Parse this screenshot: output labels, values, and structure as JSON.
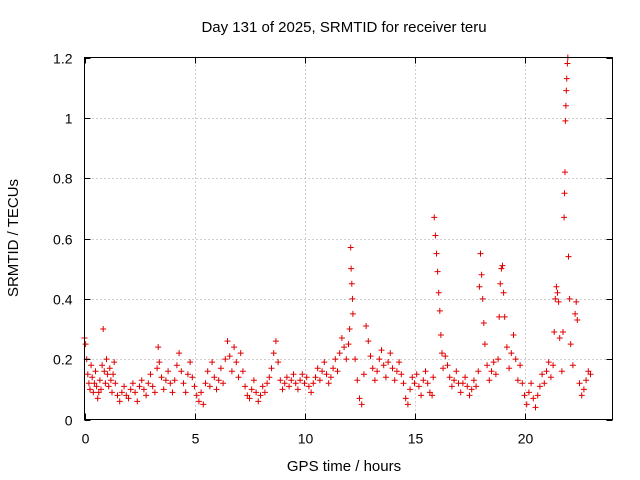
{
  "chart_data": {
    "type": "scatter",
    "title": "Day 131 of 2025, SRMTID for receiver teru",
    "xlabel": "GPS time / hours",
    "ylabel": "SRMTID / TECUs",
    "xlim": [
      0,
      24
    ],
    "ylim": [
      0,
      1.2
    ],
    "xticks": [
      0,
      5,
      10,
      15,
      20
    ],
    "xtick_labels": [
      "0",
      "5",
      "10",
      "15",
      "20"
    ],
    "yticks": [
      0,
      0.2,
      0.4,
      0.6,
      0.8,
      1.0,
      1.2
    ],
    "ytick_labels": [
      "0",
      "0.2",
      "0.4",
      "0.6",
      "0.8",
      "1",
      "1.2"
    ],
    "grid": true,
    "marker": "+",
    "color": "#e00000",
    "series": [
      {
        "name": "SRMTID",
        "points": [
          [
            0.0,
            0.27
          ],
          [
            0.05,
            0.25
          ],
          [
            0.1,
            0.2
          ],
          [
            0.15,
            0.15
          ],
          [
            0.2,
            0.12
          ],
          [
            0.25,
            0.1
          ],
          [
            0.3,
            0.18
          ],
          [
            0.35,
            0.14
          ],
          [
            0.4,
            0.09
          ],
          [
            0.45,
            0.12
          ],
          [
            0.5,
            0.16
          ],
          [
            0.55,
            0.11
          ],
          [
            0.6,
            0.07
          ],
          [
            0.65,
            0.09
          ],
          [
            0.7,
            0.13
          ],
          [
            0.75,
            0.1
          ],
          [
            0.8,
            0.18
          ],
          [
            0.85,
            0.3
          ],
          [
            0.9,
            0.16
          ],
          [
            0.95,
            0.12
          ],
          [
            1.0,
            0.2
          ],
          [
            1.05,
            0.15
          ],
          [
            1.1,
            0.11
          ],
          [
            1.15,
            0.17
          ],
          [
            1.2,
            0.13
          ],
          [
            1.25,
            0.09
          ],
          [
            1.3,
            0.15
          ],
          [
            1.35,
            0.19
          ],
          [
            1.4,
            0.12
          ],
          [
            1.5,
            0.08
          ],
          [
            1.6,
            0.06
          ],
          [
            1.7,
            0.09
          ],
          [
            1.8,
            0.11
          ],
          [
            1.9,
            0.08
          ],
          [
            2.0,
            0.07
          ],
          [
            2.1,
            0.1
          ],
          [
            2.2,
            0.12
          ],
          [
            2.3,
            0.09
          ],
          [
            2.4,
            0.06
          ],
          [
            2.5,
            0.11
          ],
          [
            2.6,
            0.13
          ],
          [
            2.7,
            0.1
          ],
          [
            2.8,
            0.08
          ],
          [
            2.9,
            0.12
          ],
          [
            3.0,
            0.15
          ],
          [
            3.1,
            0.11
          ],
          [
            3.2,
            0.09
          ],
          [
            3.3,
            0.17
          ],
          [
            3.35,
            0.24
          ],
          [
            3.4,
            0.19
          ],
          [
            3.5,
            0.14
          ],
          [
            3.6,
            0.1
          ],
          [
            3.7,
            0.13
          ],
          [
            3.8,
            0.16
          ],
          [
            3.9,
            0.12
          ],
          [
            4.0,
            0.09
          ],
          [
            4.1,
            0.13
          ],
          [
            4.2,
            0.18
          ],
          [
            4.3,
            0.22
          ],
          [
            4.4,
            0.16
          ],
          [
            4.5,
            0.12
          ],
          [
            4.6,
            0.09
          ],
          [
            4.7,
            0.15
          ],
          [
            4.8,
            0.19
          ],
          [
            4.9,
            0.14
          ],
          [
            5.0,
            0.11
          ],
          [
            5.1,
            0.08
          ],
          [
            5.2,
            0.06
          ],
          [
            5.3,
            0.09
          ],
          [
            5.4,
            0.05
          ],
          [
            5.5,
            0.12
          ],
          [
            5.6,
            0.16
          ],
          [
            5.7,
            0.11
          ],
          [
            5.8,
            0.19
          ],
          [
            5.9,
            0.14
          ],
          [
            6.0,
            0.1
          ],
          [
            6.1,
            0.13
          ],
          [
            6.2,
            0.17
          ],
          [
            6.3,
            0.12
          ],
          [
            6.4,
            0.2
          ],
          [
            6.5,
            0.26
          ],
          [
            6.6,
            0.21
          ],
          [
            6.7,
            0.16
          ],
          [
            6.8,
            0.24
          ],
          [
            6.9,
            0.19
          ],
          [
            7.0,
            0.14
          ],
          [
            7.1,
            0.22
          ],
          [
            7.2,
            0.16
          ],
          [
            7.3,
            0.11
          ],
          [
            7.4,
            0.08
          ],
          [
            7.5,
            0.07
          ],
          [
            7.6,
            0.1
          ],
          [
            7.7,
            0.13
          ],
          [
            7.8,
            0.09
          ],
          [
            7.9,
            0.06
          ],
          [
            8.0,
            0.08
          ],
          [
            8.1,
            0.11
          ],
          [
            8.2,
            0.09
          ],
          [
            8.3,
            0.12
          ],
          [
            8.4,
            0.14
          ],
          [
            8.5,
            0.17
          ],
          [
            8.6,
            0.22
          ],
          [
            8.7,
            0.26
          ],
          [
            8.8,
            0.19
          ],
          [
            8.9,
            0.13
          ],
          [
            9.0,
            0.1
          ],
          [
            9.1,
            0.12
          ],
          [
            9.2,
            0.14
          ],
          [
            9.3,
            0.11
          ],
          [
            9.4,
            0.13
          ],
          [
            9.5,
            0.15
          ],
          [
            9.6,
            0.12
          ],
          [
            9.7,
            0.1
          ],
          [
            9.8,
            0.13
          ],
          [
            9.9,
            0.15
          ],
          [
            10.0,
            0.12
          ],
          [
            10.1,
            0.14
          ],
          [
            10.2,
            0.11
          ],
          [
            10.3,
            0.09
          ],
          [
            10.4,
            0.12
          ],
          [
            10.5,
            0.14
          ],
          [
            10.6,
            0.17
          ],
          [
            10.7,
            0.13
          ],
          [
            10.8,
            0.16
          ],
          [
            10.9,
            0.19
          ],
          [
            11.0,
            0.15
          ],
          [
            11.1,
            0.12
          ],
          [
            11.2,
            0.14
          ],
          [
            11.3,
            0.17
          ],
          [
            11.4,
            0.2
          ],
          [
            11.5,
            0.16
          ],
          [
            11.6,
            0.22
          ],
          [
            11.7,
            0.27
          ],
          [
            11.8,
            0.24
          ],
          [
            11.9,
            0.2
          ],
          [
            12.0,
            0.25
          ],
          [
            12.05,
            0.3
          ],
          [
            12.1,
            0.57
          ],
          [
            12.12,
            0.5
          ],
          [
            12.15,
            0.45
          ],
          [
            12.18,
            0.4
          ],
          [
            12.2,
            0.35
          ],
          [
            12.3,
            0.2
          ],
          [
            12.4,
            0.13
          ],
          [
            12.5,
            0.07
          ],
          [
            12.6,
            0.05
          ],
          [
            12.7,
            0.15
          ],
          [
            12.8,
            0.31
          ],
          [
            12.9,
            0.26
          ],
          [
            13.0,
            0.21
          ],
          [
            13.1,
            0.17
          ],
          [
            13.2,
            0.13
          ],
          [
            13.3,
            0.16
          ],
          [
            13.4,
            0.2
          ],
          [
            13.5,
            0.23
          ],
          [
            13.6,
            0.18
          ],
          [
            13.7,
            0.14
          ],
          [
            13.8,
            0.19
          ],
          [
            13.9,
            0.22
          ],
          [
            14.0,
            0.17
          ],
          [
            14.1,
            0.13
          ],
          [
            14.2,
            0.16
          ],
          [
            14.3,
            0.19
          ],
          [
            14.4,
            0.15
          ],
          [
            14.5,
            0.12
          ],
          [
            14.6,
            0.07
          ],
          [
            14.7,
            0.05
          ],
          [
            14.8,
            0.1
          ],
          [
            14.9,
            0.14
          ],
          [
            15.0,
            0.12
          ],
          [
            15.1,
            0.15
          ],
          [
            15.2,
            0.11
          ],
          [
            15.3,
            0.08
          ],
          [
            15.4,
            0.13
          ],
          [
            15.5,
            0.16
          ],
          [
            15.6,
            0.12
          ],
          [
            15.7,
            0.09
          ],
          [
            15.8,
            0.08
          ],
          [
            15.85,
            0.14
          ],
          [
            15.9,
            0.67
          ],
          [
            15.95,
            0.61
          ],
          [
            16.0,
            0.55
          ],
          [
            16.05,
            0.49
          ],
          [
            16.1,
            0.42
          ],
          [
            16.15,
            0.36
          ],
          [
            16.2,
            0.28
          ],
          [
            16.25,
            0.22
          ],
          [
            16.3,
            0.17
          ],
          [
            16.4,
            0.21
          ],
          [
            16.5,
            0.18
          ],
          [
            16.6,
            0.14
          ],
          [
            16.7,
            0.11
          ],
          [
            16.8,
            0.13
          ],
          [
            16.9,
            0.16
          ],
          [
            17.0,
            0.12
          ],
          [
            17.1,
            0.09
          ],
          [
            17.2,
            0.12
          ],
          [
            17.3,
            0.14
          ],
          [
            17.4,
            0.11
          ],
          [
            17.5,
            0.08
          ],
          [
            17.6,
            0.1
          ],
          [
            17.7,
            0.13
          ],
          [
            17.8,
            0.11
          ],
          [
            17.9,
            0.16
          ],
          [
            17.95,
            0.44
          ],
          [
            18.0,
            0.55
          ],
          [
            18.05,
            0.48
          ],
          [
            18.1,
            0.4
          ],
          [
            18.15,
            0.32
          ],
          [
            18.2,
            0.25
          ],
          [
            18.3,
            0.18
          ],
          [
            18.4,
            0.13
          ],
          [
            18.5,
            0.16
          ],
          [
            18.6,
            0.19
          ],
          [
            18.7,
            0.15
          ],
          [
            18.8,
            0.2
          ],
          [
            18.85,
            0.34
          ],
          [
            18.9,
            0.45
          ],
          [
            18.95,
            0.5
          ],
          [
            19.0,
            0.51
          ],
          [
            19.05,
            0.42
          ],
          [
            19.1,
            0.34
          ],
          [
            19.2,
            0.24
          ],
          [
            19.3,
            0.17
          ],
          [
            19.4,
            0.22
          ],
          [
            19.5,
            0.28
          ],
          [
            19.6,
            0.2
          ],
          [
            19.7,
            0.13
          ],
          [
            19.8,
            0.18
          ],
          [
            19.9,
            0.12
          ],
          [
            20.0,
            0.08
          ],
          [
            20.1,
            0.05
          ],
          [
            20.2,
            0.09
          ],
          [
            20.3,
            0.12
          ],
          [
            20.4,
            0.07
          ],
          [
            20.5,
            0.04
          ],
          [
            20.6,
            0.08
          ],
          [
            20.7,
            0.11
          ],
          [
            20.8,
            0.15
          ],
          [
            20.9,
            0.12
          ],
          [
            21.0,
            0.16
          ],
          [
            21.1,
            0.19
          ],
          [
            21.2,
            0.14
          ],
          [
            21.3,
            0.18
          ],
          [
            21.35,
            0.29
          ],
          [
            21.4,
            0.4
          ],
          [
            21.45,
            0.44
          ],
          [
            21.5,
            0.42
          ],
          [
            21.55,
            0.39
          ],
          [
            21.6,
            0.27
          ],
          [
            21.7,
            0.16
          ],
          [
            21.75,
            0.29
          ],
          [
            21.8,
            0.67
          ],
          [
            21.82,
            0.75
          ],
          [
            21.84,
            0.82
          ],
          [
            21.86,
            0.99
          ],
          [
            21.88,
            1.04
          ],
          [
            21.9,
            1.09
          ],
          [
            21.92,
            1.13
          ],
          [
            21.95,
            1.18
          ],
          [
            21.97,
            1.2
          ],
          [
            22.0,
            0.54
          ],
          [
            22.05,
            0.4
          ],
          [
            22.1,
            0.25
          ],
          [
            22.2,
            0.18
          ],
          [
            22.3,
            0.35
          ],
          [
            22.35,
            0.39
          ],
          [
            22.4,
            0.33
          ],
          [
            22.5,
            0.12
          ],
          [
            22.6,
            0.08
          ],
          [
            22.7,
            0.1
          ],
          [
            22.8,
            0.13
          ],
          [
            22.9,
            0.16
          ],
          [
            23.0,
            0.15
          ]
        ]
      }
    ]
  }
}
